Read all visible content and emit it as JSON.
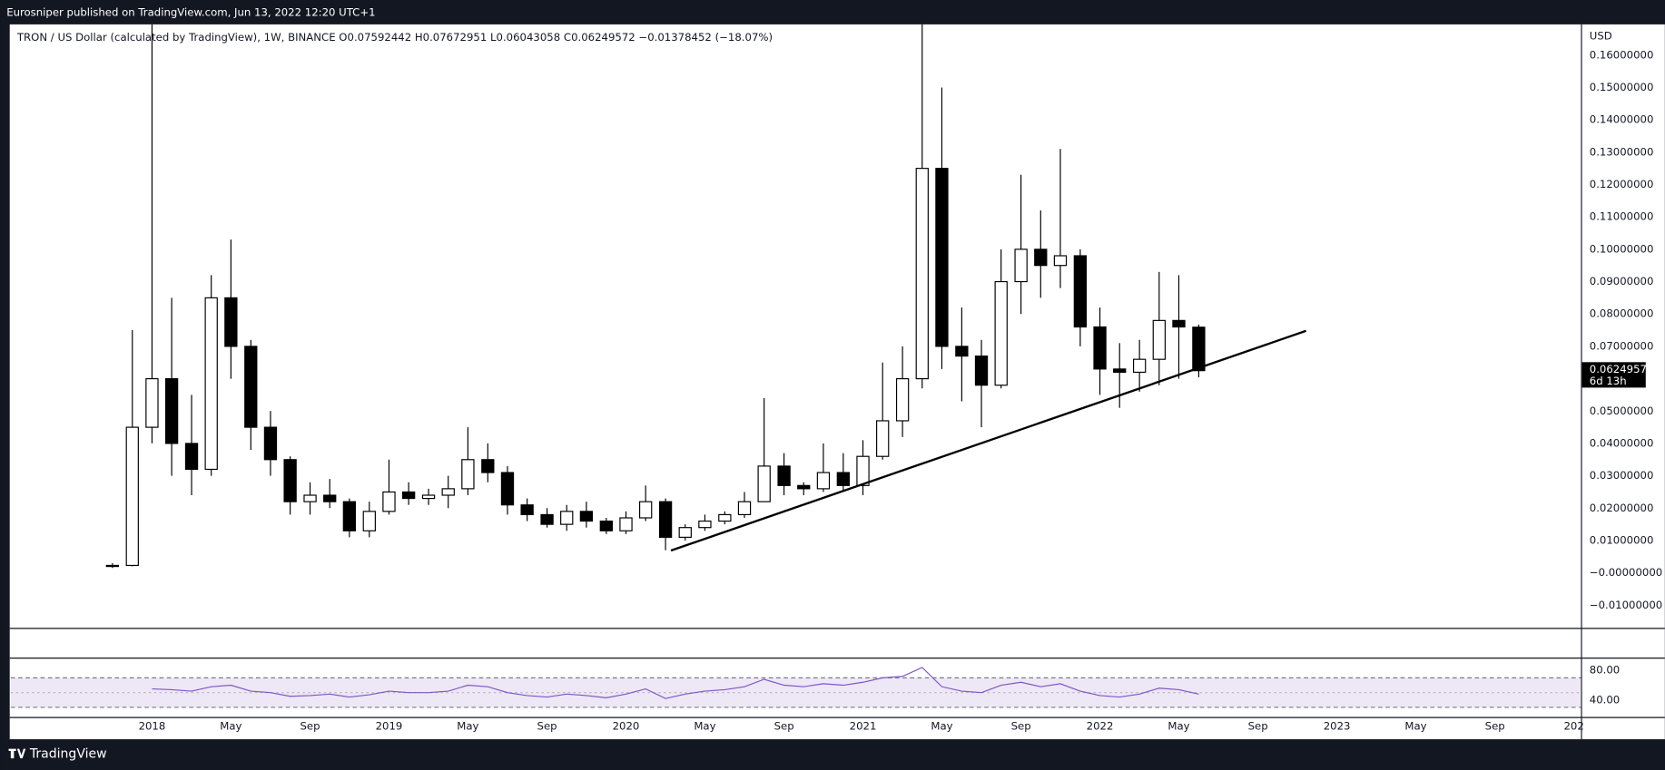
{
  "header": {
    "published": "Eurosniper published on TradingView.com, Jun 13, 2022 12:20 UTC+1"
  },
  "footer": {
    "brand": "TradingView"
  },
  "legend": {
    "symbol": "TRON / US Dollar (calculated by TradingView), 1W, BINANCE",
    "open_label": "O",
    "high_label": "H",
    "low_label": "L",
    "close_label": "C",
    "change": "−0.01378452 (−18.07%)"
  },
  "chart_data": [
    {
      "type": "candlestick",
      "currency": "USD",
      "countdown": "6d 13h",
      "up_color": "#ffffff",
      "down_color": "#000000",
      "outline_color": "#000000",
      "x": [
        2017.833,
        2017.917,
        2018.0,
        2018.083,
        2018.167,
        2018.25,
        2018.333,
        2018.417,
        2018.5,
        2018.583,
        2018.667,
        2018.75,
        2018.833,
        2018.917,
        2019.0,
        2019.083,
        2019.167,
        2019.25,
        2019.333,
        2019.417,
        2019.5,
        2019.583,
        2019.667,
        2019.75,
        2019.833,
        2019.917,
        2020.0,
        2020.083,
        2020.167,
        2020.25,
        2020.333,
        2020.417,
        2020.5,
        2020.583,
        2020.667,
        2020.75,
        2020.833,
        2020.917,
        2021.0,
        2021.083,
        2021.167,
        2021.25,
        2021.333,
        2021.417,
        2021.5,
        2021.583,
        2021.667,
        2021.75,
        2021.833,
        2021.917,
        2022.0,
        2022.083,
        2022.167,
        2022.25,
        2022.333,
        2022.417
      ],
      "open": [
        0.0022,
        0.0023,
        0.045,
        0.06,
        0.04,
        0.032,
        0.085,
        0.07,
        0.045,
        0.035,
        0.022,
        0.024,
        0.022,
        0.013,
        0.019,
        0.025,
        0.023,
        0.024,
        0.026,
        0.035,
        0.031,
        0.021,
        0.018,
        0.015,
        0.019,
        0.016,
        0.013,
        0.017,
        0.022,
        0.011,
        0.014,
        0.016,
        0.018,
        0.022,
        0.033,
        0.027,
        0.026,
        0.031,
        0.027,
        0.036,
        0.047,
        0.06,
        0.125,
        0.07,
        0.067,
        0.058,
        0.09,
        0.1,
        0.095,
        0.098,
        0.076,
        0.063,
        0.062,
        0.066,
        0.078,
        0.07592442
      ],
      "high": [
        0.003,
        0.075,
        0.3,
        0.085,
        0.055,
        0.092,
        0.103,
        0.072,
        0.05,
        0.036,
        0.028,
        0.029,
        0.023,
        0.022,
        0.035,
        0.028,
        0.026,
        0.03,
        0.045,
        0.04,
        0.033,
        0.023,
        0.02,
        0.021,
        0.022,
        0.017,
        0.019,
        0.027,
        0.023,
        0.015,
        0.018,
        0.019,
        0.025,
        0.054,
        0.037,
        0.028,
        0.04,
        0.037,
        0.041,
        0.065,
        0.07,
        0.185,
        0.15,
        0.082,
        0.072,
        0.1,
        0.123,
        0.112,
        0.131,
        0.1,
        0.082,
        0.071,
        0.072,
        0.093,
        0.092,
        0.07672951
      ],
      "low": [
        0.0015,
        0.002,
        0.04,
        0.03,
        0.024,
        0.03,
        0.06,
        0.038,
        0.03,
        0.018,
        0.018,
        0.02,
        0.011,
        0.011,
        0.018,
        0.021,
        0.021,
        0.02,
        0.024,
        0.028,
        0.018,
        0.016,
        0.014,
        0.013,
        0.014,
        0.012,
        0.012,
        0.016,
        0.007,
        0.01,
        0.013,
        0.015,
        0.017,
        0.022,
        0.024,
        0.024,
        0.025,
        0.025,
        0.024,
        0.035,
        0.042,
        0.057,
        0.063,
        0.053,
        0.045,
        0.057,
        0.08,
        0.085,
        0.088,
        0.07,
        0.055,
        0.051,
        0.056,
        0.058,
        0.06,
        0.06043058
      ],
      "close": [
        0.0023,
        0.045,
        0.06,
        0.04,
        0.032,
        0.085,
        0.07,
        0.045,
        0.035,
        0.022,
        0.024,
        0.022,
        0.013,
        0.019,
        0.025,
        0.023,
        0.024,
        0.026,
        0.035,
        0.031,
        0.021,
        0.018,
        0.015,
        0.019,
        0.016,
        0.013,
        0.017,
        0.022,
        0.011,
        0.014,
        0.016,
        0.018,
        0.022,
        0.033,
        0.027,
        0.026,
        0.031,
        0.027,
        0.036,
        0.047,
        0.06,
        0.125,
        0.07,
        0.067,
        0.058,
        0.09,
        0.1,
        0.095,
        0.098,
        0.076,
        0.063,
        0.062,
        0.066,
        0.078,
        0.076,
        0.06249572
      ],
      "trendline": {
        "x": [
          2020.19,
          2022.87
        ],
        "values": [
          0.0069,
          0.0748
        ],
        "color": "#000000"
      },
      "xlim": [
        2017.404,
        2024.03
      ],
      "xticks": [
        2018,
        {
          "value": 2018.333,
          "label": "May"
        },
        {
          "value": 2018.667,
          "label": "Sep"
        },
        2019,
        {
          "value": 2019.333,
          "label": "May"
        },
        {
          "value": 2019.667,
          "label": "Sep"
        },
        2020,
        {
          "value": 2020.333,
          "label": "May"
        },
        {
          "value": 2020.667,
          "label": "Sep"
        },
        2021,
        {
          "value": 2021.333,
          "label": "May"
        },
        {
          "value": 2021.667,
          "label": "Sep"
        },
        2022,
        {
          "value": 2022.333,
          "label": "May"
        },
        {
          "value": 2022.667,
          "label": "Sep"
        },
        2023,
        {
          "value": 2023.333,
          "label": "May"
        },
        {
          "value": 2023.667,
          "label": "Sep"
        },
        {
          "value": 2024,
          "label": "202"
        }
      ],
      "ylim": [
        -0.017,
        0.1695
      ],
      "yticks": [
        {
          "value": 0.16,
          "label": "0.16000000"
        },
        {
          "value": 0.15,
          "label": "0.15000000"
        },
        {
          "value": 0.14,
          "label": "0.14000000"
        },
        {
          "value": 0.13,
          "label": "0.13000000"
        },
        {
          "value": 0.12,
          "label": "0.12000000"
        },
        {
          "value": 0.11,
          "label": "0.11000000"
        },
        {
          "value": 0.1,
          "label": "0.10000000"
        },
        {
          "value": 0.09,
          "label": "0.09000000"
        },
        {
          "value": 0.08,
          "label": "0.08000000"
        },
        {
          "value": 0.07,
          "label": "0.07000000"
        },
        {
          "value": 0.05,
          "label": "0.05000000"
        },
        {
          "value": 0.04,
          "label": "0.04000000"
        },
        {
          "value": 0.03,
          "label": "0.03000000"
        },
        {
          "value": 0.02,
          "label": "0.02000000"
        },
        {
          "value": 0.01,
          "label": "0.01000000"
        },
        {
          "value": 0,
          "label": "−0.00000000"
        },
        {
          "value": -0.01,
          "label": "−0.01000000"
        }
      ]
    },
    {
      "type": "line",
      "color": "#7e57c2",
      "band": [
        30,
        70
      ],
      "band_color": "#ede7f6",
      "midline": 50,
      "x": [
        2018.0,
        2018.083,
        2018.167,
        2018.25,
        2018.333,
        2018.417,
        2018.5,
        2018.583,
        2018.667,
        2018.75,
        2018.833,
        2018.917,
        2019.0,
        2019.083,
        2019.167,
        2019.25,
        2019.333,
        2019.417,
        2019.5,
        2019.583,
        2019.667,
        2019.75,
        2019.833,
        2019.917,
        2020.0,
        2020.083,
        2020.167,
        2020.25,
        2020.333,
        2020.417,
        2020.5,
        2020.583,
        2020.667,
        2020.75,
        2020.833,
        2020.917,
        2021.0,
        2021.083,
        2021.167,
        2021.25,
        2021.333,
        2021.417,
        2021.5,
        2021.583,
        2021.667,
        2021.75,
        2021.833,
        2021.917,
        2022.0,
        2022.083,
        2022.167,
        2022.25,
        2022.333,
        2022.417
      ],
      "values": [
        55,
        54,
        52,
        58,
        60,
        52,
        50,
        45,
        46,
        48,
        44,
        47,
        52,
        50,
        50,
        52,
        60,
        58,
        50,
        46,
        44,
        48,
        46,
        43,
        48,
        55,
        42,
        48,
        52,
        54,
        58,
        68,
        60,
        58,
        62,
        60,
        64,
        70,
        72,
        84,
        58,
        52,
        50,
        60,
        64,
        58,
        62,
        52,
        46,
        44,
        48,
        56,
        54,
        48
      ],
      "xlim": [
        2017.404,
        2024.03
      ],
      "ylim": [
        17,
        96
      ],
      "yticks": [
        {
          "value": 80,
          "label": "80.00"
        },
        {
          "value": 40,
          "label": "40.00"
        }
      ]
    }
  ]
}
